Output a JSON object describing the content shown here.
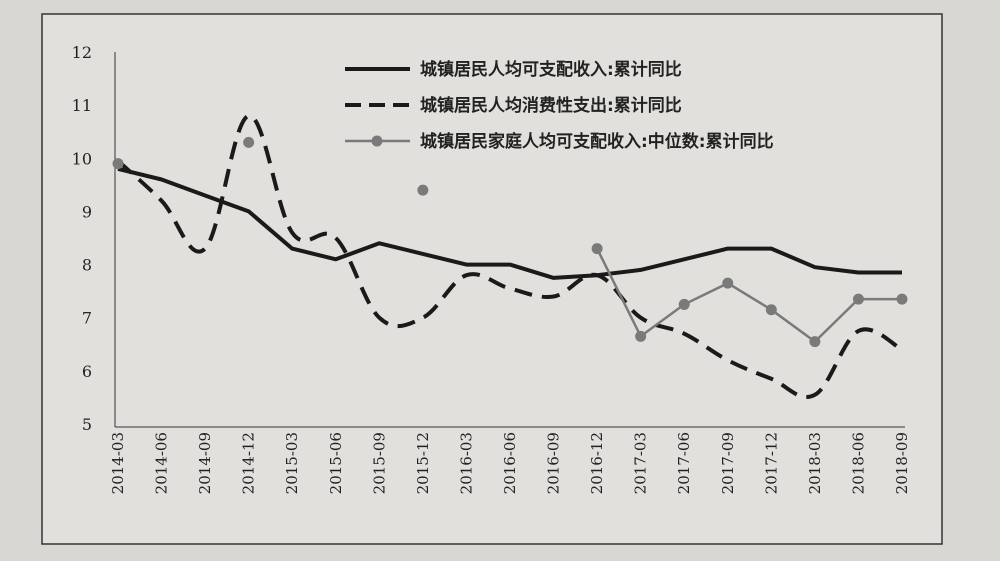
{
  "chart_data": {
    "type": "line",
    "categories": [
      "2014-03",
      "2014-06",
      "2014-09",
      "2014-12",
      "2015-03",
      "2015-06",
      "2015-09",
      "2015-12",
      "2016-03",
      "2016-06",
      "2016-09",
      "2016-12",
      "2017-03",
      "2017-06",
      "2017-09",
      "2017-12",
      "2018-03",
      "2018-06",
      "2018-09"
    ],
    "ylim": [
      5,
      12
    ],
    "yticks": [
      "5",
      "6",
      "7",
      "8",
      "9",
      "10",
      "11",
      "12"
    ],
    "grid": false,
    "legend_position": "top-right",
    "series": [
      {
        "name": "城镇居民人均可支配收入:累计同比",
        "style": "solid",
        "color": "#1a1a1a",
        "values": [
          9.8,
          9.6,
          9.3,
          9.0,
          8.3,
          8.1,
          8.4,
          8.2,
          8.0,
          8.0,
          7.75,
          7.8,
          7.9,
          8.1,
          8.3,
          8.3,
          7.95,
          7.85,
          7.85
        ]
      },
      {
        "name": "城镇居民人均消费性支出:累计同比",
        "style": "dashed",
        "color": "#1a1a1a",
        "values": [
          9.95,
          9.2,
          8.3,
          10.8,
          8.6,
          8.5,
          7.0,
          7.0,
          7.8,
          7.55,
          7.4,
          7.8,
          7.0,
          6.7,
          6.2,
          5.85,
          5.55,
          6.75,
          6.4
        ]
      },
      {
        "name": "城镇居民家庭人均可支配收入:中位数:累计同比",
        "style": "solid-markers",
        "color": "#7a7a7a",
        "values": [
          9.9,
          null,
          null,
          10.3,
          null,
          null,
          null,
          9.4,
          null,
          null,
          null,
          8.3,
          6.65,
          7.25,
          7.65,
          7.15,
          6.55,
          7.35,
          7.35
        ]
      }
    ]
  }
}
